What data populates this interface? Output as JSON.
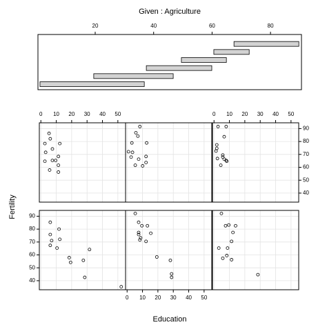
{
  "chart_data": {
    "type": "coplot",
    "xlabel": "Education",
    "ylabel": "Fertility",
    "xlim": [
      -1,
      55
    ],
    "ylim": [
      33,
      94.5
    ],
    "xticks": [
      0,
      10,
      20,
      30,
      40,
      50
    ],
    "yticks": [
      40,
      50,
      60,
      70,
      80,
      90
    ],
    "grid": true,
    "given": {
      "label": "Given : Agriculture",
      "xlim": [
        0.4,
        90.6
      ],
      "xticks": [
        20,
        40,
        60,
        80
      ],
      "color": "#d3d3d3",
      "intervals": [
        [
          1.1,
          36.8
        ],
        [
          19.5,
          46.7
        ],
        [
          37.5,
          59.9
        ],
        [
          49.5,
          64.9
        ],
        [
          60.6,
          72.7
        ],
        [
          67.5,
          89.7
        ]
      ]
    },
    "panels": [
      {
        "x": [
          6.1,
          11.8,
          6.1,
          7.0,
          12.3,
          6.1,
          10.5,
          18.4,
          19.3,
          31.6,
          27.6,
          28.5,
          52.2
        ],
        "y": [
          85.3,
          80.0,
          75.8,
          71.1,
          72.1,
          67.4,
          65.3,
          57.9,
          54.2,
          64.2,
          55.8,
          42.6,
          35.3
        ]
      },
      {
        "x": [
          5.3,
          7.5,
          9.6,
          13.2,
          7.5,
          7.5,
          8.8,
          15.4,
          8.3,
          12.3,
          19.3,
          28.1,
          28.9,
          28.9
        ],
        "y": [
          92.1,
          85.3,
          82.6,
          82.6,
          77.4,
          75.8,
          73.2,
          76.8,
          71.6,
          70.5,
          58.4,
          55.8,
          45.3,
          42.6
        ]
      },
      {
        "x": [
          4.8,
          7.5,
          9.6,
          14.0,
          12.3,
          11.4,
          8.8,
          3.1,
          8.3,
          5.7,
          11.4,
          28.5
        ],
        "y": [
          92.1,
          82.6,
          83.2,
          82.6,
          77.4,
          70.5,
          65.3,
          65.3,
          59.5,
          57.4,
          56.3,
          44.7
        ]
      },
      {
        "x": [
          5.3,
          2.6,
          6.1,
          3.1,
          7.5,
          12.3,
          2.6,
          7.5,
          9.6,
          11.4,
          11.4,
          5.7,
          11.4
        ],
        "y": [
          86.3,
          78.4,
          82.1,
          71.6,
          74.2,
          78.4,
          64.7,
          65.3,
          65.3,
          68.4,
          61.6,
          57.9,
          56.3
        ]
      },
      {
        "x": [
          8.3,
          5.7,
          7.0,
          3.1,
          12.7,
          0.9,
          3.5,
          2.6,
          7.5,
          12.3,
          12.3,
          5.3,
          10.1
        ],
        "y": [
          91.6,
          86.8,
          84.2,
          78.9,
          78.9,
          72.1,
          71.6,
          67.9,
          66.3,
          68.4,
          63.7,
          61.6,
          61.1
        ]
      },
      {
        "x": [
          2.6,
          7.9,
          6.6,
          1.8,
          1.8,
          1.3,
          5.7,
          5.7,
          6.6,
          7.9,
          8.3,
          2.2,
          4.4
        ],
        "y": [
          91.6,
          91.6,
          83.7,
          77.4,
          74.7,
          72.6,
          69.5,
          67.9,
          66.3,
          65.3,
          64.7,
          66.8,
          61.6
        ]
      }
    ]
  }
}
